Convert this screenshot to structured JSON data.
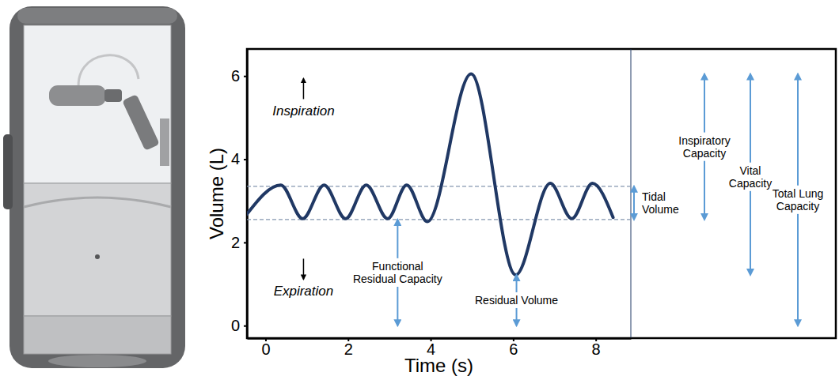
{
  "chart_data": {
    "type": "line",
    "xlabel": "Time (s)",
    "ylabel": "Volume (L)",
    "xlim": [
      -0.45,
      8.85
    ],
    "ylim": [
      -0.3,
      6.65
    ],
    "xticks": [
      0,
      2,
      4,
      6,
      8
    ],
    "yticks": [
      0,
      2,
      4,
      6
    ],
    "grid": false,
    "color": "#203864",
    "x": [
      -0.45,
      0.37,
      0.9,
      1.42,
      1.94,
      2.44,
      2.96,
      3.42,
      3.92,
      4.98,
      6.06,
      6.9,
      7.42,
      7.92,
      8.42
    ],
    "values": [
      2.68,
      3.38,
      2.57,
      3.38,
      2.57,
      3.38,
      2.57,
      3.38,
      2.5,
      6.05,
      1.22,
      3.42,
      2.57,
      3.42,
      2.6
    ],
    "reference_lines": [
      {
        "value": 2.55,
        "line_style": "dashed",
        "color": "#8497b0"
      },
      {
        "value": 3.35,
        "line_style": "dashed",
        "color": "#8497b0"
      }
    ],
    "annotations": [
      {
        "text": "Inspiration",
        "x": 0.92,
        "y": 5.16,
        "color": "#000000"
      },
      {
        "text": "Expiration",
        "x": 0.92,
        "y": 0.83,
        "color": "#000000"
      },
      {
        "text": "Functional Residual Capacity",
        "x": 3.2,
        "y": [
          0,
          2.55
        ],
        "color": "#5b9bd5"
      },
      {
        "text": "Residual Volume",
        "x": 6.08,
        "y": [
          0,
          1.22
        ],
        "color": "#5b9bd5"
      },
      {
        "text": "Tidal Volume",
        "y": [
          2.55,
          3.35
        ],
        "color": "#5b9bd5"
      },
      {
        "text": "Inspiratory Capacity",
        "y": [
          2.55,
          6.05
        ],
        "color": "#5b9bd5"
      },
      {
        "text": "Vital Capacity",
        "y": [
          1.22,
          6.05
        ],
        "color": "#5b9bd5"
      },
      {
        "text": "Total Lung Capacity",
        "y": [
          0,
          6.05
        ],
        "color": "#5b9bd5"
      }
    ]
  }
}
